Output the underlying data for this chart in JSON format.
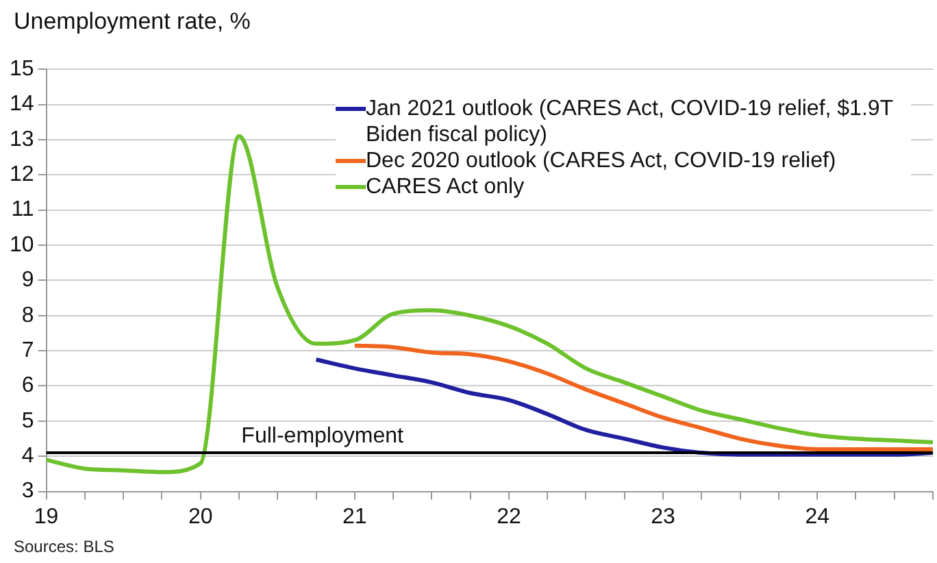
{
  "chart_data": {
    "type": "line",
    "title": "Unemployment rate, %",
    "annotations": [
      "Sources: BLS"
    ],
    "x": [
      19,
      19.25,
      19.5,
      19.75,
      20,
      20.25,
      20.5,
      20.75,
      21,
      21.25,
      21.5,
      21.75,
      22,
      22.25,
      22.5,
      22.75,
      23,
      23.25,
      23.5,
      23.75,
      24,
      24.25,
      24.5,
      24.75
    ],
    "series": [
      {
        "name": "Jan 2021 outlook (CARES Act, COVID-19 relief, $1.9T Biden fiscal policy)",
        "color": "#1f1fa0",
        "values": [
          null,
          null,
          null,
          null,
          null,
          null,
          null,
          6.75,
          6.5,
          6.3,
          6.1,
          5.8,
          5.6,
          5.2,
          4.75,
          4.5,
          4.25,
          4.1,
          4.05,
          4.05,
          4.05,
          4.05,
          4.05,
          4.1
        ]
      },
      {
        "name": "Dec 2020 outlook (CARES Act, COVID-19 relief)",
        "color": "#f0641e",
        "values": [
          null,
          null,
          null,
          null,
          null,
          null,
          null,
          null,
          7.15,
          7.1,
          6.95,
          6.9,
          6.7,
          6.35,
          5.9,
          5.5,
          5.1,
          4.8,
          4.5,
          4.3,
          4.2,
          4.2,
          4.2,
          4.2
        ]
      },
      {
        "name": "CARES Act only",
        "color": "#6cc12c",
        "values": [
          3.9,
          3.65,
          3.6,
          3.55,
          3.8,
          13.1,
          8.8,
          7.2,
          7.3,
          8.05,
          8.15,
          8.0,
          7.7,
          7.2,
          6.5,
          6.1,
          5.7,
          5.3,
          5.05,
          4.8,
          4.6,
          4.5,
          4.45,
          4.4
        ]
      }
    ],
    "xlim": [
      19,
      24.75
    ],
    "xticks": [
      19,
      {
        "value": 19.25,
        "label": null
      },
      {
        "value": 19.5,
        "label": null
      },
      {
        "value": 19.75,
        "label": null
      },
      20,
      {
        "value": 20.25,
        "label": null
      },
      {
        "value": 20.5,
        "label": null
      },
      {
        "value": 20.75,
        "label": null
      },
      21,
      {
        "value": 21.25,
        "label": null
      },
      {
        "value": 21.5,
        "label": null
      },
      {
        "value": 21.75,
        "label": null
      },
      22,
      {
        "value": 22.25,
        "label": null
      },
      {
        "value": 22.5,
        "label": null
      },
      {
        "value": 22.75,
        "label": null
      },
      23,
      {
        "value": 23.25,
        "label": null
      },
      {
        "value": 23.5,
        "label": null
      },
      {
        "value": 23.75,
        "label": null
      },
      24,
      {
        "value": 24.25,
        "label": null
      },
      {
        "value": 24.5,
        "label": null
      },
      {
        "value": 24.75,
        "label": null
      }
    ],
    "ylim": [
      3,
      15
    ],
    "yticks": [
      3,
      4,
      5,
      6,
      7,
      8,
      9,
      10,
      11,
      12,
      13,
      14,
      15
    ],
    "ref_lines": [
      {
        "axis": "y",
        "value": 4.1,
        "label": "Full-employment",
        "color": "#000000"
      }
    ],
    "grid": "y",
    "legend": "top right",
    "marker": "none",
    "line_style": "solid"
  }
}
